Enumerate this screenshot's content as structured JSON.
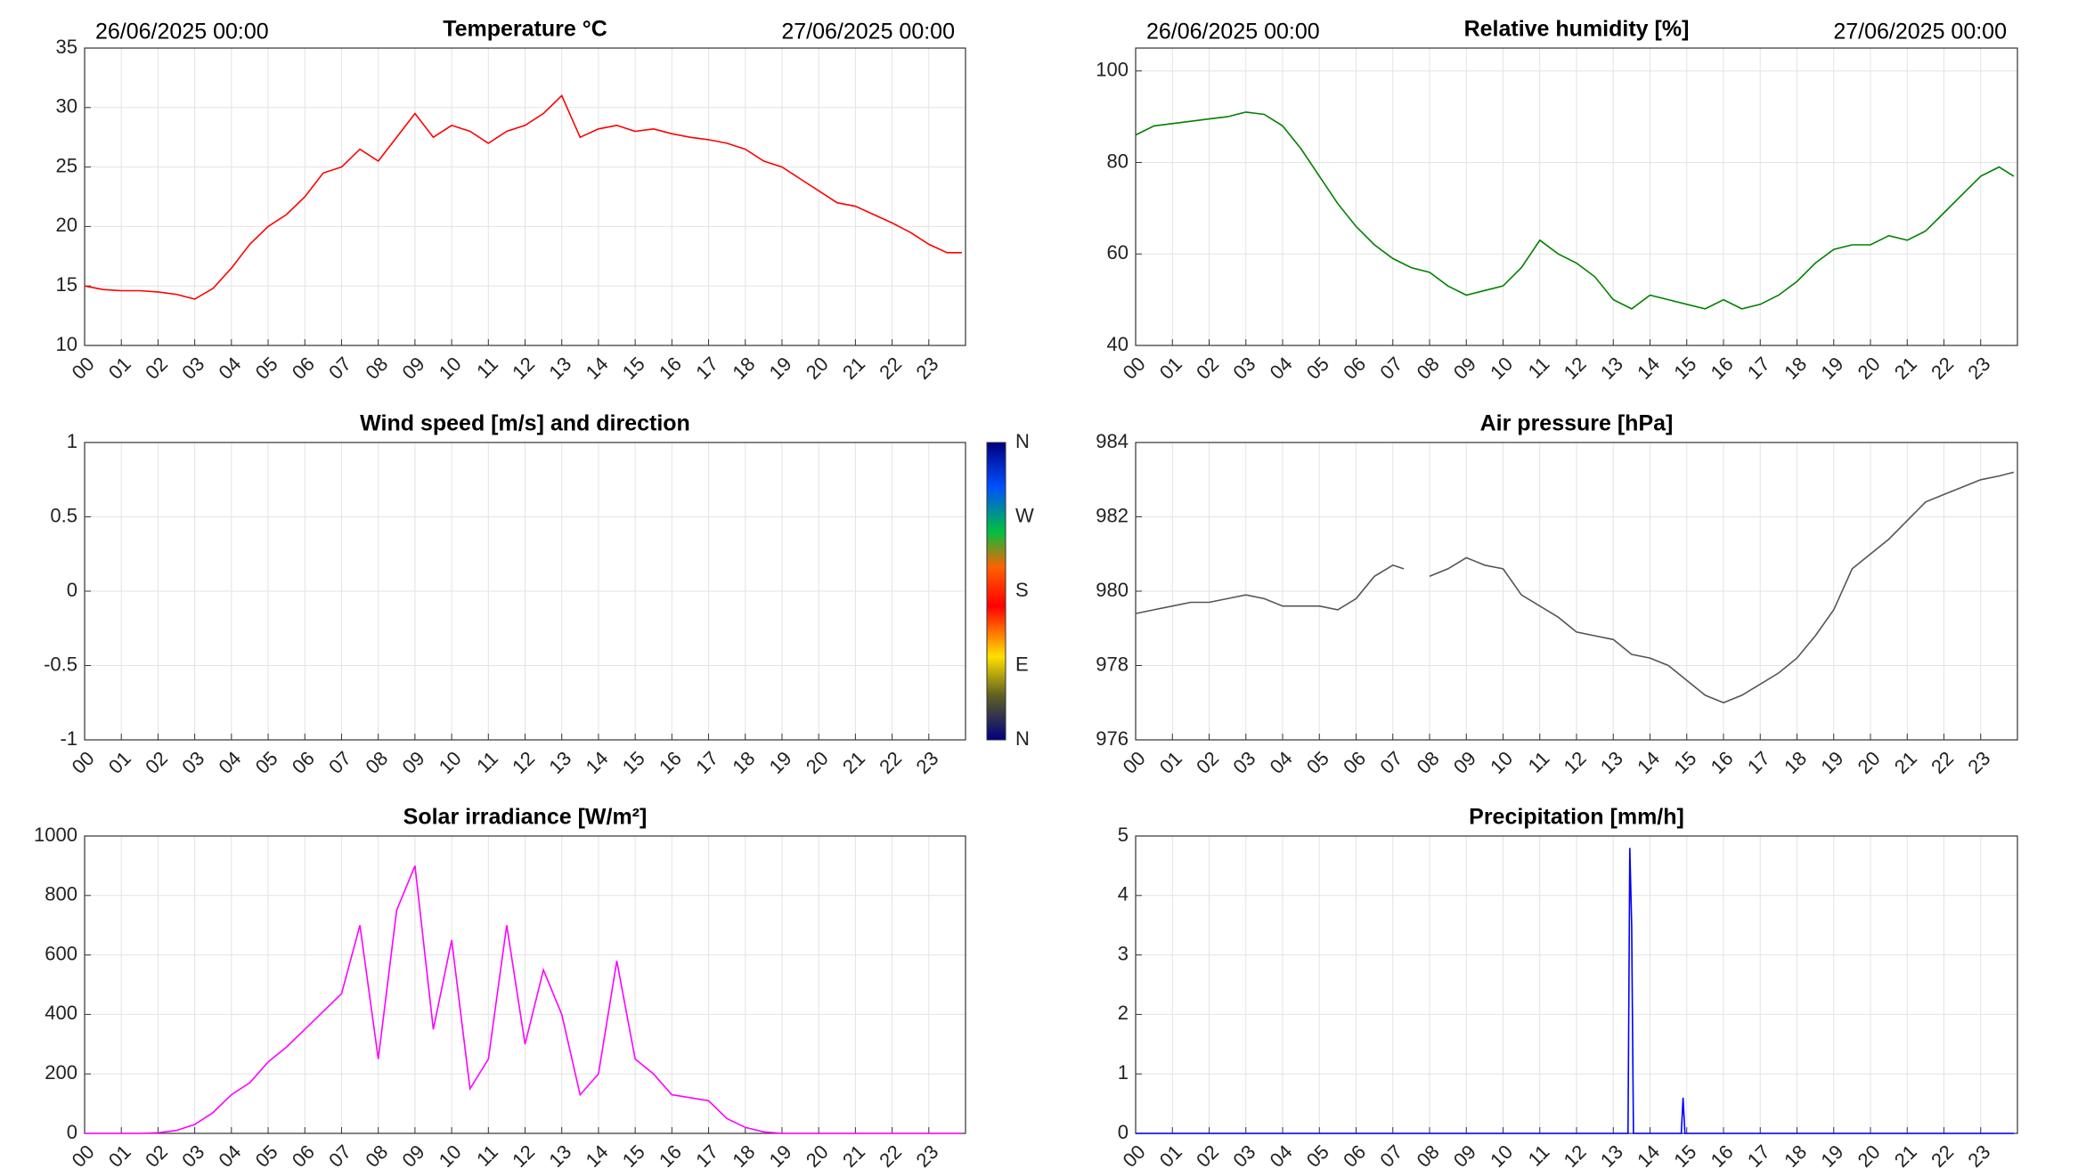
{
  "chart_data": [
    {
      "type": "line",
      "title": "Temperature °C",
      "annotations": [
        "26/06/2025 00:00",
        "27/06/2025 00:00"
      ],
      "color": "#ff0000",
      "grid": true,
      "xlim": [
        0,
        24
      ],
      "ylim": [
        10,
        35
      ],
      "yticks": [
        10,
        15,
        20,
        25,
        30,
        35
      ],
      "xticks": [
        {
          "value": 0,
          "label": "00"
        },
        {
          "value": 1,
          "label": "01"
        },
        {
          "value": 2,
          "label": "02"
        },
        {
          "value": 3,
          "label": "03"
        },
        {
          "value": 4,
          "label": "04"
        },
        {
          "value": 5,
          "label": "05"
        },
        {
          "value": 6,
          "label": "06"
        },
        {
          "value": 7,
          "label": "07"
        },
        {
          "value": 8,
          "label": "08"
        },
        {
          "value": 9,
          "label": "09"
        },
        {
          "value": 10,
          "label": "10"
        },
        {
          "value": 11,
          "label": "11"
        },
        {
          "value": 12,
          "label": "12"
        },
        {
          "value": 13,
          "label": "13"
        },
        {
          "value": 14,
          "label": "14"
        },
        {
          "value": 15,
          "label": "15"
        },
        {
          "value": 16,
          "label": "16"
        },
        {
          "value": 17,
          "label": "17"
        },
        {
          "value": 18,
          "label": "18"
        },
        {
          "value": 19,
          "label": "19"
        },
        {
          "value": 20,
          "label": "20"
        },
        {
          "value": 21,
          "label": "21"
        },
        {
          "value": 22,
          "label": "22"
        },
        {
          "value": 23,
          "label": "23"
        }
      ],
      "x": [
        0,
        0.5,
        1,
        1.5,
        2,
        2.5,
        3,
        3.5,
        4,
        4.5,
        5,
        5.5,
        6,
        6.5,
        7,
        7.5,
        8,
        8.5,
        9,
        9.5,
        10,
        10.5,
        11,
        11.5,
        12,
        12.5,
        13,
        13.5,
        14,
        14.5,
        15,
        15.5,
        16,
        16.5,
        17,
        17.5,
        18,
        18.5,
        19,
        19.5,
        20,
        20.5,
        21,
        21.5,
        22,
        22.5,
        23,
        23.5,
        23.9
      ],
      "values": [
        15,
        14.7,
        14.6,
        14.6,
        14.5,
        14.3,
        13.9,
        14.8,
        16.5,
        18.5,
        20,
        21,
        22.5,
        24.5,
        25,
        26.5,
        25.5,
        27.5,
        29.5,
        27.5,
        28.5,
        28,
        27,
        28,
        28.5,
        29.5,
        31,
        27.5,
        28.2,
        28.5,
        28,
        28.2,
        27.8,
        27.5,
        27.3,
        27,
        26.5,
        25.5,
        25,
        24,
        23,
        22,
        21.7,
        21,
        20.3,
        19.5,
        18.5,
        17.8,
        17.8
      ]
    },
    {
      "type": "line",
      "title": "Relative humidity [%]",
      "annotations": [
        "26/06/2025 00:00",
        "27/06/2025 00:00"
      ],
      "color": "#008000",
      "grid": true,
      "xlim": [
        0,
        24
      ],
      "ylim": [
        40,
        105
      ],
      "yticks": [
        40,
        60,
        80,
        100
      ],
      "xticks": [
        {
          "value": 0,
          "label": "00"
        },
        {
          "value": 1,
          "label": "01"
        },
        {
          "value": 2,
          "label": "02"
        },
        {
          "value": 3,
          "label": "03"
        },
        {
          "value": 4,
          "label": "04"
        },
        {
          "value": 5,
          "label": "05"
        },
        {
          "value": 6,
          "label": "06"
        },
        {
          "value": 7,
          "label": "07"
        },
        {
          "value": 8,
          "label": "08"
        },
        {
          "value": 9,
          "label": "09"
        },
        {
          "value": 10,
          "label": "10"
        },
        {
          "value": 11,
          "label": "11"
        },
        {
          "value": 12,
          "label": "12"
        },
        {
          "value": 13,
          "label": "13"
        },
        {
          "value": 14,
          "label": "14"
        },
        {
          "value": 15,
          "label": "15"
        },
        {
          "value": 16,
          "label": "16"
        },
        {
          "value": 17,
          "label": "17"
        },
        {
          "value": 18,
          "label": "18"
        },
        {
          "value": 19,
          "label": "19"
        },
        {
          "value": 20,
          "label": "20"
        },
        {
          "value": 21,
          "label": "21"
        },
        {
          "value": 22,
          "label": "22"
        },
        {
          "value": 23,
          "label": "23"
        }
      ],
      "x": [
        0,
        0.5,
        1,
        1.5,
        2,
        2.5,
        3,
        3.5,
        4,
        4.5,
        5,
        5.5,
        6,
        6.5,
        7,
        7.5,
        8,
        8.5,
        9,
        9.5,
        10,
        10.5,
        11,
        11.5,
        12,
        12.5,
        13,
        13.5,
        14,
        14.5,
        15,
        15.5,
        16,
        16.5,
        17,
        17.5,
        18,
        18.5,
        19,
        19.5,
        20,
        20.5,
        21,
        21.5,
        22,
        22.5,
        23,
        23.5,
        23.9
      ],
      "values": [
        86,
        88,
        88.5,
        89,
        89.5,
        90,
        91,
        90.5,
        88,
        83,
        77,
        71,
        66,
        62,
        59,
        57,
        56,
        53,
        51,
        52,
        53,
        57,
        63,
        60,
        58,
        55,
        50,
        48,
        51,
        50,
        49,
        48,
        50,
        48,
        49,
        51,
        54,
        58,
        61,
        62,
        62,
        64,
        63,
        65,
        69,
        73,
        77,
        79,
        77
      ]
    },
    {
      "type": "line",
      "title": "Wind speed [m/s] and direction",
      "grid": true,
      "xlim": [
        0,
        24
      ],
      "ylim": [
        -1,
        1
      ],
      "yticks": [
        -1,
        -0.5,
        0,
        0.5,
        1
      ],
      "colorbar_labels": [
        "N",
        "W",
        "S",
        "E",
        "N"
      ],
      "xticks": [
        {
          "value": 0,
          "label": "00"
        },
        {
          "value": 1,
          "label": "01"
        },
        {
          "value": 2,
          "label": "02"
        },
        {
          "value": 3,
          "label": "03"
        },
        {
          "value": 4,
          "label": "04"
        },
        {
          "value": 5,
          "label": "05"
        },
        {
          "value": 6,
          "label": "06"
        },
        {
          "value": 7,
          "label": "07"
        },
        {
          "value": 8,
          "label": "08"
        },
        {
          "value": 9,
          "label": "09"
        },
        {
          "value": 10,
          "label": "10"
        },
        {
          "value": 11,
          "label": "11"
        },
        {
          "value": 12,
          "label": "12"
        },
        {
          "value": 13,
          "label": "13"
        },
        {
          "value": 14,
          "label": "14"
        },
        {
          "value": 15,
          "label": "15"
        },
        {
          "value": 16,
          "label": "16"
        },
        {
          "value": 17,
          "label": "17"
        },
        {
          "value": 18,
          "label": "18"
        },
        {
          "value": 19,
          "label": "19"
        },
        {
          "value": 20,
          "label": "20"
        },
        {
          "value": 21,
          "label": "21"
        },
        {
          "value": 22,
          "label": "22"
        },
        {
          "value": 23,
          "label": "23"
        }
      ]
    },
    {
      "type": "line",
      "title": "Air pressure [hPa]",
      "color": "#555555",
      "grid": true,
      "xlim": [
        0,
        24
      ],
      "ylim": [
        976,
        984
      ],
      "yticks": [
        976,
        978,
        980,
        982,
        984
      ],
      "xticks": [
        {
          "value": 0,
          "label": "00"
        },
        {
          "value": 1,
          "label": "01"
        },
        {
          "value": 2,
          "label": "02"
        },
        {
          "value": 3,
          "label": "03"
        },
        {
          "value": 4,
          "label": "04"
        },
        {
          "value": 5,
          "label": "05"
        },
        {
          "value": 6,
          "label": "06"
        },
        {
          "value": 7,
          "label": "07"
        },
        {
          "value": 8,
          "label": "08"
        },
        {
          "value": 9,
          "label": "09"
        },
        {
          "value": 10,
          "label": "10"
        },
        {
          "value": 11,
          "label": "11"
        },
        {
          "value": 12,
          "label": "12"
        },
        {
          "value": 13,
          "label": "13"
        },
        {
          "value": 14,
          "label": "14"
        },
        {
          "value": 15,
          "label": "15"
        },
        {
          "value": 16,
          "label": "16"
        },
        {
          "value": 17,
          "label": "17"
        },
        {
          "value": 18,
          "label": "18"
        },
        {
          "value": 19,
          "label": "19"
        },
        {
          "value": 20,
          "label": "20"
        },
        {
          "value": 21,
          "label": "21"
        },
        {
          "value": 22,
          "label": "22"
        },
        {
          "value": 23,
          "label": "23"
        }
      ],
      "x": [
        0,
        0.5,
        1,
        1.5,
        2,
        2.5,
        3,
        3.5,
        4,
        4.5,
        5,
        5.5,
        6,
        6.5,
        7,
        7.3,
        7.5,
        8,
        8.5,
        9,
        9.5,
        10,
        10.5,
        11,
        11.5,
        12,
        12.5,
        13,
        13.5,
        14,
        14.5,
        15,
        15.5,
        16,
        16.5,
        17,
        17.5,
        18,
        18.5,
        19,
        19.5,
        20,
        20.5,
        21,
        21.5,
        22,
        22.5,
        23,
        23.5,
        23.9
      ],
      "values": [
        979.4,
        979.5,
        979.6,
        979.7,
        979.7,
        979.8,
        979.9,
        979.8,
        979.6,
        979.6,
        979.6,
        979.5,
        979.8,
        980.4,
        980.7,
        980.6,
        null,
        980.4,
        980.6,
        980.9,
        980.7,
        980.6,
        979.9,
        979.6,
        979.3,
        978.9,
        978.8,
        978.7,
        978.3,
        978.2,
        978,
        977.6,
        977.2,
        977,
        977.2,
        977.5,
        977.8,
        978.2,
        978.8,
        979.5,
        980.6,
        981,
        981.4,
        981.9,
        982.4,
        982.6,
        982.8,
        983,
        983.1,
        983.2
      ]
    },
    {
      "type": "line",
      "title": "Solar irradiance [W/m²]",
      "color": "#ff00ff",
      "grid": true,
      "xlim": [
        0,
        24
      ],
      "ylim": [
        0,
        1000
      ],
      "yticks": [
        0,
        200,
        400,
        600,
        800,
        1000
      ],
      "xticks": [
        {
          "value": 0,
          "label": "00"
        },
        {
          "value": 1,
          "label": "01"
        },
        {
          "value": 2,
          "label": "02"
        },
        {
          "value": 3,
          "label": "03"
        },
        {
          "value": 4,
          "label": "04"
        },
        {
          "value": 5,
          "label": "05"
        },
        {
          "value": 6,
          "label": "06"
        },
        {
          "value": 7,
          "label": "07"
        },
        {
          "value": 8,
          "label": "08"
        },
        {
          "value": 9,
          "label": "09"
        },
        {
          "value": 10,
          "label": "10"
        },
        {
          "value": 11,
          "label": "11"
        },
        {
          "value": 12,
          "label": "12"
        },
        {
          "value": 13,
          "label": "13"
        },
        {
          "value": 14,
          "label": "14"
        },
        {
          "value": 15,
          "label": "15"
        },
        {
          "value": 16,
          "label": "16"
        },
        {
          "value": 17,
          "label": "17"
        },
        {
          "value": 18,
          "label": "18"
        },
        {
          "value": 19,
          "label": "19"
        },
        {
          "value": 20,
          "label": "20"
        },
        {
          "value": 21,
          "label": "21"
        },
        {
          "value": 22,
          "label": "22"
        },
        {
          "value": 23,
          "label": "23"
        }
      ],
      "x": [
        0,
        0.5,
        1,
        1.5,
        2,
        2.5,
        3,
        3.5,
        4,
        4.5,
        5,
        5.5,
        6,
        6.5,
        7,
        7.5,
        8,
        8.5,
        9,
        9.5,
        10,
        10.5,
        11,
        11.5,
        12,
        12.5,
        13,
        13.5,
        14,
        14.5,
        15,
        15.5,
        16,
        16.5,
        17,
        17.5,
        18,
        18.5,
        19,
        20,
        21,
        22,
        23,
        23.9
      ],
      "values": [
        0,
        0,
        0,
        0,
        2,
        10,
        30,
        70,
        130,
        170,
        240,
        290,
        350,
        410,
        470,
        700,
        250,
        750,
        900,
        350,
        650,
        150,
        250,
        700,
        300,
        550,
        400,
        130,
        200,
        580,
        250,
        200,
        130,
        120,
        110,
        50,
        20,
        5,
        0,
        0,
        0,
        0,
        0,
        0
      ]
    },
    {
      "type": "line",
      "title": "Precipitation [mm/h]",
      "color": "#0000ff",
      "grid": true,
      "xlim": [
        0,
        24
      ],
      "ylim": [
        0,
        5
      ],
      "yticks": [
        0,
        1,
        2,
        3,
        4,
        5
      ],
      "xticks": [
        {
          "value": 0,
          "label": "00"
        },
        {
          "value": 1,
          "label": "01"
        },
        {
          "value": 2,
          "label": "02"
        },
        {
          "value": 3,
          "label": "03"
        },
        {
          "value": 4,
          "label": "04"
        },
        {
          "value": 5,
          "label": "05"
        },
        {
          "value": 6,
          "label": "06"
        },
        {
          "value": 7,
          "label": "07"
        },
        {
          "value": 8,
          "label": "08"
        },
        {
          "value": 9,
          "label": "09"
        },
        {
          "value": 10,
          "label": "10"
        },
        {
          "value": 11,
          "label": "11"
        },
        {
          "value": 12,
          "label": "12"
        },
        {
          "value": 13,
          "label": "13"
        },
        {
          "value": 14,
          "label": "14"
        },
        {
          "value": 15,
          "label": "15"
        },
        {
          "value": 16,
          "label": "16"
        },
        {
          "value": 17,
          "label": "17"
        },
        {
          "value": 18,
          "label": "18"
        },
        {
          "value": 19,
          "label": "19"
        },
        {
          "value": 20,
          "label": "20"
        },
        {
          "value": 21,
          "label": "21"
        },
        {
          "value": 22,
          "label": "22"
        },
        {
          "value": 23,
          "label": "23"
        }
      ],
      "x": [
        0,
        13.4,
        13.45,
        13.5,
        13.55,
        14.85,
        14.9,
        14.95,
        23.9
      ],
      "values": [
        0,
        0,
        4.8,
        3.5,
        0,
        0,
        0.6,
        0,
        0
      ]
    }
  ]
}
